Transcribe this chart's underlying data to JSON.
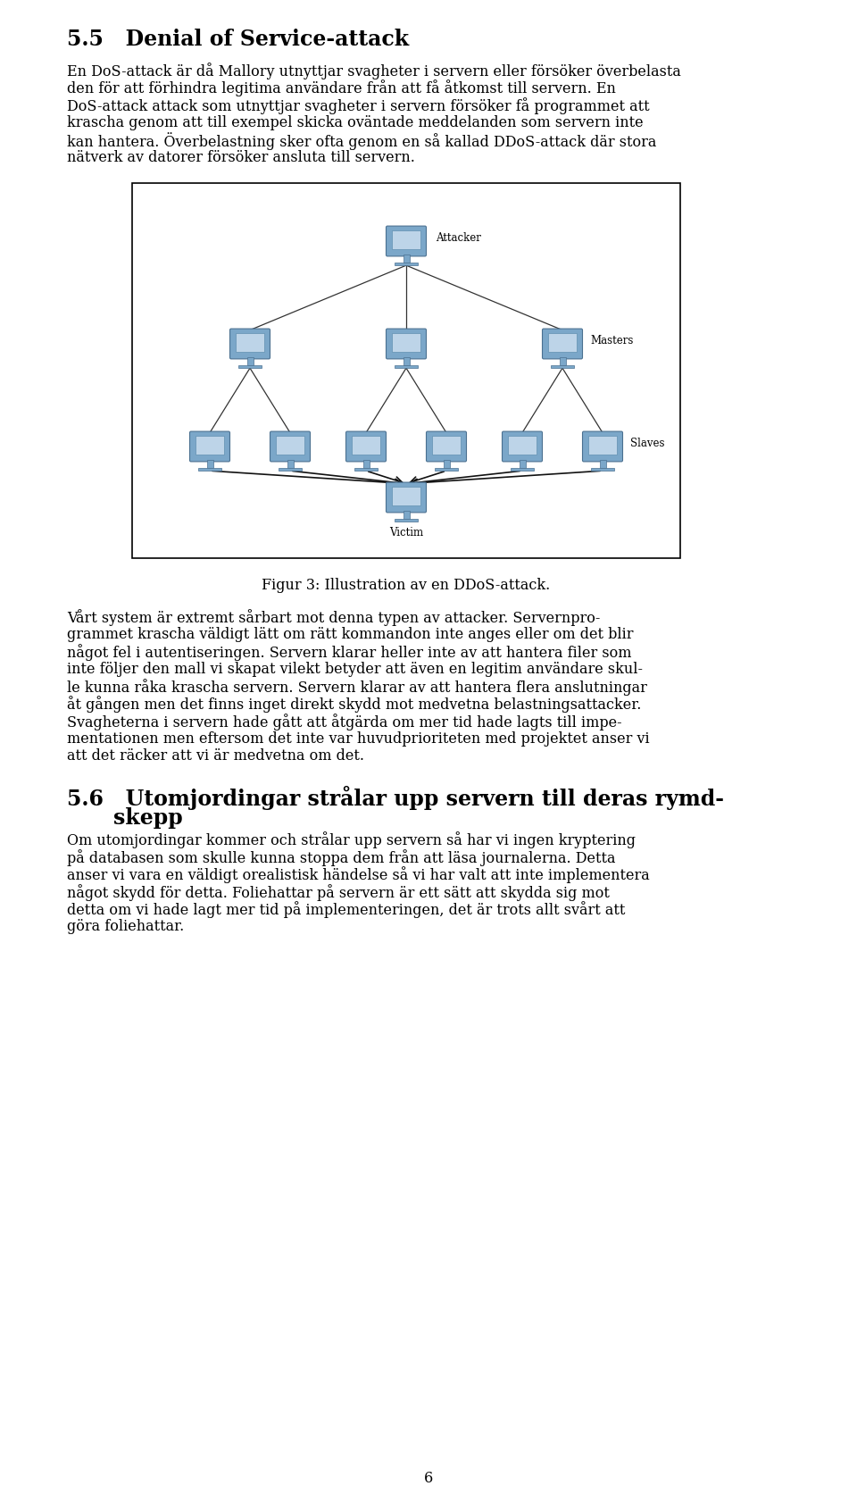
{
  "title": "5.5   Denial of Service-attack",
  "p1_lines": [
    "En DoS-attack är då Mallory utnyttjar svagheter i servern eller försöker överbelasta",
    "den för att förhindra legitima användare från att få åtkomst till servern. En",
    "DoS-attack attack som utnyttjar svagheter i servern försöker få programmet att",
    "krascha genom att till exempel skicka oväntade meddelanden som servern inte",
    "kan hantera. Överbelastning sker ofta genom en så kallad DDoS-attack där stora",
    "nätverk av datorer försöker ansluta till servern."
  ],
  "caption": "Figur 3: Illustration av en DDoS-attack.",
  "p2_lines": [
    "Vårt system är extremt sårbart mot denna typen av attacker. Servernpro-",
    "grammet krascha väldigt lätt om rätt kommandon inte anges eller om det blir",
    "något fel i autentiseringen. Servern klarar heller inte av att hantera filer som",
    "inte följer den mall vi skapat vilekt betyder att även en legitim användare skul-",
    "le kunna råka krascha servern. Servern klarar av att hantera flera anslutningar",
    "åt gången men det finns inget direkt skydd mot medvetna belastningsattacker.",
    "Svagheterna i servern hade gått att åtgärda om mer tid hade lagts till impe-",
    "mentationen men eftersom det inte var huvudprioriteten med projektet anser vi",
    "att det räcker att vi är medvetna om det."
  ],
  "sec2_line1": "5.6   Utomjordingar strålar upp servern till deras rymd-",
  "sec2_line2": "skepp",
  "p3_lines": [
    "Om utomjordingar kommer och strålar upp servern så har vi ingen kryptering",
    "på databasen som skulle kunna stoppa dem från att läsa journalerna. Detta",
    "anser vi vara en väldigt orealistisk händelse så vi har valt att inte implementera",
    "något skydd för detta. Foliehattar på servern är ett sätt att skydda sig mot",
    "detta om vi hade lagt mer tid på implementeringen, det är trots allt svårt att",
    "göra foliehattar."
  ],
  "page_number": "6",
  "bg_color": "#ffffff",
  "text_color": "#000000",
  "box_color": "#000000",
  "comp_body_color": "#7ba7c9",
  "comp_screen_color": "#bdd4e8",
  "line_color": "#333333"
}
